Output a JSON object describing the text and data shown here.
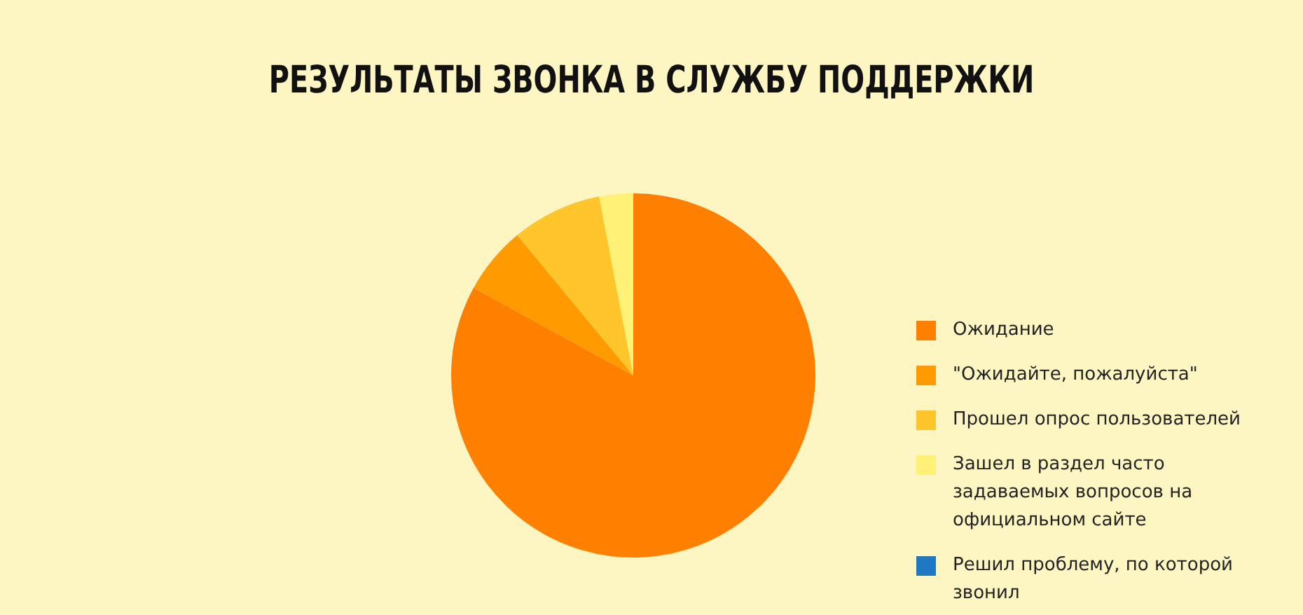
{
  "chart_data": {
    "type": "pie",
    "title": "РЕЗУЛЬТАТЫ ЗВОНКА В СЛУЖБУ ПОДДЕРЖКИ",
    "categories": [
      "Ожидание",
      "\"Ожидайте, пожалуйста\"",
      "Прошел опрос пользователей",
      "Зашел в раздел часто задаваемых вопросов на официальном сайте",
      "Решил проблему, по которой звонил"
    ],
    "values": [
      83,
      6,
      8,
      3,
      0
    ],
    "colors": [
      "#ff7f00",
      "#ff9a00",
      "#ffc52a",
      "#fff176",
      "#1f78c1"
    ],
    "legend": "right"
  }
}
